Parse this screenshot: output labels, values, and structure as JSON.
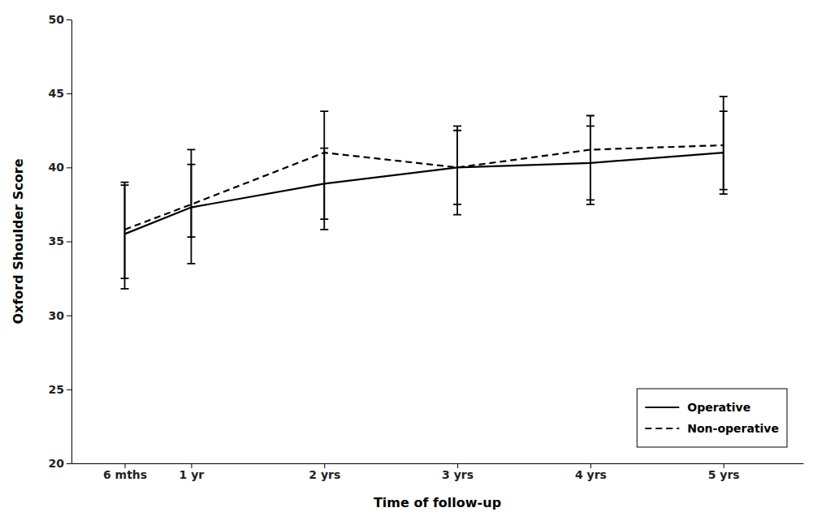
{
  "chart_data": {
    "type": "line",
    "x": [
      0.5,
      1.0,
      2.0,
      3.0,
      4.0,
      5.0
    ],
    "xlabel": "Time of follow-up",
    "ylabel": "Oxford Shoulder Score",
    "xlim": [
      0.1,
      5.6
    ],
    "xticks": [
      {
        "value": 0.5,
        "label": "6 mths"
      },
      {
        "value": 1.0,
        "label": "1 yr"
      },
      {
        "value": 2.0,
        "label": "2 yrs"
      },
      {
        "value": 3.0,
        "label": "3 yrs"
      },
      {
        "value": 4.0,
        "label": "4 yrs"
      },
      {
        "value": 5.0,
        "label": "5 yrs"
      }
    ],
    "ylim": [
      20,
      50
    ],
    "yticks": [
      20,
      25,
      30,
      35,
      40,
      45,
      50
    ],
    "grid": false,
    "legend": "lower right",
    "series": [
      {
        "name": "Operative",
        "color": "#000000",
        "line_style": "solid",
        "values": [
          35.5,
          37.3,
          38.9,
          40.0,
          40.3,
          41.0
        ],
        "ci_low": [
          32.5,
          35.3,
          36.5,
          37.5,
          37.8,
          38.2
        ],
        "ci_high": [
          38.8,
          40.2,
          41.3,
          42.5,
          42.8,
          43.8
        ]
      },
      {
        "name": "Non-operative",
        "color": "#000000",
        "line_style": "dashed",
        "values": [
          35.8,
          37.5,
          41.0,
          40.0,
          41.2,
          41.5
        ],
        "ci_low": [
          31.8,
          33.5,
          35.8,
          36.8,
          37.5,
          38.5
        ],
        "ci_high": [
          39.0,
          41.2,
          43.8,
          42.8,
          43.5,
          44.8
        ]
      }
    ]
  }
}
